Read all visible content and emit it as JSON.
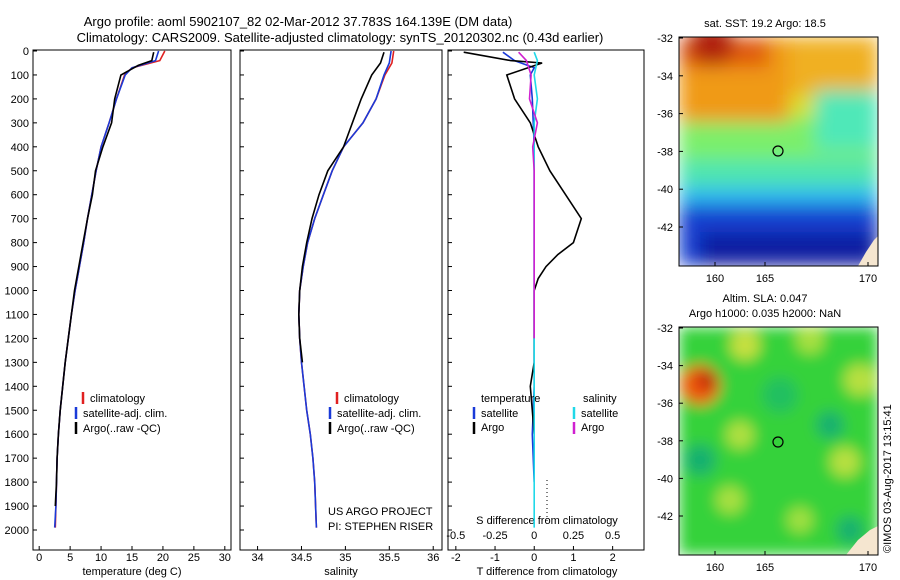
{
  "header": {
    "title1": "Argo profile: aoml 5902107_82 02-Mar-2012 37.783S 164.139E (DM data)",
    "title2": "Climatology: CARS2009. Satellite-adjusted climatology: synTS_20120302.nc (0.43d earlier)"
  },
  "colors": {
    "climatology": "#e02020",
    "satellite": "#1a3ad8",
    "argo": "#000000",
    "sat_salinity": "#20d8e8",
    "argo_salinity": "#d020d0"
  },
  "depth_axis": {
    "ticks": [
      "0",
      "100",
      "200",
      "300",
      "400",
      "500",
      "600",
      "700",
      "800",
      "900",
      "1000",
      "1100",
      "1200",
      "1300",
      "1400",
      "1500",
      "1600",
      "1700",
      "1800",
      "1900",
      "2000"
    ]
  },
  "temp_panel": {
    "xlabel": "temperature (deg C)",
    "xticks": [
      "0",
      "5",
      "10",
      "15",
      "20",
      "25",
      "30"
    ],
    "legend": [
      "climatology",
      "satellite-adj. clim.",
      "Argo(..raw -QC)"
    ]
  },
  "sal_panel": {
    "xlabel": "salinity",
    "xticks": [
      "34",
      "34.5",
      "35",
      "35.5",
      "36"
    ],
    "legend": [
      "climatology",
      "satellite-adj. clim.",
      "Argo(..raw -QC)"
    ],
    "note1": "US ARGO PROJECT",
    "note2": "PI: STEPHEN RISER"
  },
  "diff_panel": {
    "top_label": "S difference from climatology",
    "top_ticks": [
      "-0.5",
      "-0.25",
      "0",
      "0.25",
      "0.5"
    ],
    "xlabel": "T difference from climatology",
    "xticks": [
      "-2",
      "-1",
      "0",
      "1",
      "2"
    ],
    "legend_head_t": "temperature",
    "legend_head_s": "salinity",
    "legend_sat": "satellite",
    "legend_argo": "Argo"
  },
  "map_sst": {
    "title": "sat. SST: 19.2  Argo: 18.5",
    "yticks": [
      "-32",
      "-34",
      "-36",
      "-38",
      "-40",
      "-42"
    ],
    "xticks": [
      "160",
      "165",
      "170"
    ]
  },
  "map_sla": {
    "title1": "Altim. SLA: 0.047",
    "title2": "Argo h1000: 0.035  h2000: NaN",
    "yticks": [
      "-32",
      "-34",
      "-36",
      "-38",
      "-40",
      "-42"
    ],
    "xticks": [
      "160",
      "165",
      "170"
    ]
  },
  "footer": {
    "credit": "©IMOS 03-Aug-2017 13:15:41"
  },
  "chart_data": [
    {
      "type": "line",
      "xlabel": "temperature (deg C)",
      "ylabel": "",
      "xlim": [
        -1,
        31
      ],
      "ylim": [
        2000,
        0
      ],
      "series": [
        {
          "name": "climatology",
          "x": [
            20.3,
            19.5,
            15.0,
            13.8,
            12.5,
            11.3,
            10.0,
            9.2,
            8.5,
            7.8,
            7.2,
            6.5,
            5.8,
            5.2,
            4.7,
            4.2,
            3.8,
            3.4,
            3.1,
            2.9,
            2.8,
            2.7,
            2.6
          ],
          "y": [
            0,
            40,
            70,
            100,
            200,
            300,
            400,
            500,
            600,
            700,
            800,
            900,
            1000,
            1100,
            1200,
            1300,
            1400,
            1500,
            1600,
            1700,
            1800,
            1900,
            1990
          ]
        },
        {
          "name": "satellite-adj. clim.",
          "x": [
            19.3,
            18.8,
            15.0,
            13.9,
            12.5,
            11.3,
            10.0,
            9.2,
            8.5,
            7.8,
            7.2,
            6.5,
            5.8,
            5.2,
            4.7,
            4.2,
            3.8,
            3.4,
            3.1,
            2.9,
            2.8,
            2.7,
            2.5
          ],
          "y": [
            0,
            40,
            70,
            100,
            200,
            300,
            400,
            500,
            600,
            700,
            800,
            900,
            1000,
            1100,
            1200,
            1300,
            1400,
            1500,
            1600,
            1700,
            1800,
            1900,
            1990
          ]
        },
        {
          "name": "Argo(..raw -QC)",
          "x": [
            18.5,
            18.2,
            16.0,
            13.2,
            12.2,
            11.7,
            10.3,
            9.1,
            8.6,
            7.8,
            7.1,
            6.4,
            5.7,
            5.2,
            4.7,
            4.2,
            3.8,
            3.4,
            3.1,
            2.9,
            2.8,
            2.6
          ],
          "y": [
            5,
            40,
            60,
            100,
            200,
            300,
            400,
            500,
            600,
            700,
            800,
            900,
            1000,
            1100,
            1200,
            1300,
            1400,
            1500,
            1600,
            1700,
            1800,
            1900
          ]
        }
      ]
    },
    {
      "type": "line",
      "xlabel": "salinity",
      "ylabel": "",
      "xlim": [
        33.8,
        36.1
      ],
      "ylim": [
        2000,
        0
      ],
      "series": [
        {
          "name": "climatology",
          "x": [
            35.55,
            35.53,
            35.45,
            35.35,
            35.2,
            34.98,
            34.85,
            34.75,
            34.65,
            34.57,
            34.52,
            34.48,
            34.47,
            34.48,
            34.5,
            34.53,
            34.56,
            34.6,
            34.63,
            34.65,
            34.67
          ],
          "y": [
            0,
            50,
            100,
            200,
            300,
            400,
            500,
            600,
            700,
            800,
            900,
            1000,
            1100,
            1200,
            1300,
            1400,
            1500,
            1600,
            1700,
            1800,
            1990
          ]
        },
        {
          "name": "satellite-adj. clim.",
          "x": [
            35.52,
            35.5,
            35.44,
            35.35,
            35.2,
            34.98,
            34.85,
            34.75,
            34.65,
            34.57,
            34.52,
            34.48,
            34.47,
            34.48,
            34.5,
            34.53,
            34.56,
            34.6,
            34.63,
            34.65,
            34.67
          ],
          "y": [
            0,
            50,
            100,
            200,
            300,
            400,
            500,
            600,
            700,
            800,
            900,
            1000,
            1100,
            1200,
            1300,
            1400,
            1500,
            1600,
            1700,
            1800,
            1990
          ]
        },
        {
          "name": "Argo(..raw -QC)",
          "x": [
            35.44,
            35.4,
            35.3,
            35.18,
            35.08,
            34.98,
            34.8,
            34.7,
            34.62,
            34.56,
            34.51,
            34.48,
            34.47,
            34.48,
            34.51
          ],
          "y": [
            5,
            50,
            100,
            200,
            300,
            400,
            500,
            600,
            700,
            800,
            900,
            1000,
            1100,
            1200,
            1300
          ]
        }
      ]
    },
    {
      "type": "line",
      "xlabel": "T difference from climatology",
      "x2label": "S difference from climatology",
      "xlim": [
        -2.2,
        2.8
      ],
      "x2lim": [
        -0.55,
        0.7
      ],
      "ylim": [
        2000,
        0
      ],
      "series": [
        {
          "name": "satellite",
          "axis": "T",
          "x": [
            -0.8,
            -0.5,
            0.0,
            -0.1,
            -0.05,
            0.0,
            0.0,
            0.0,
            0.0,
            0.0,
            0.0,
            -0.05,
            0.0
          ],
          "y": [
            5,
            40,
            70,
            100,
            200,
            400,
            600,
            800,
            1000,
            1200,
            1400,
            1600,
            1800
          ]
        },
        {
          "name": "Argo",
          "axis": "T",
          "x": [
            -1.8,
            -0.6,
            0.2,
            -0.7,
            -0.5,
            -0.1,
            0.1,
            0.4,
            0.8,
            1.2,
            1.0,
            0.6,
            0.3,
            0.1,
            0.0,
            0.0,
            0.0,
            0.0,
            -0.1,
            -0.05,
            0.0
          ],
          "y": [
            5,
            40,
            50,
            100,
            200,
            300,
            400,
            500,
            600,
            700,
            800,
            850,
            900,
            950,
            1000,
            1100,
            1200,
            1300,
            1400,
            1500,
            1600
          ]
        },
        {
          "name": "satellite",
          "axis": "S",
          "x": [
            0.0,
            0.02,
            0.0,
            0.02,
            0.0,
            0.0,
            0.0,
            0.0,
            0.0,
            0.0,
            0.0,
            0.0,
            0.0
          ],
          "y": [
            5,
            40,
            100,
            200,
            300,
            500,
            700,
            900,
            1100,
            1300,
            1500,
            1700,
            1990
          ]
        },
        {
          "name": "Argo",
          "axis": "S",
          "x": [
            -0.1,
            -0.05,
            -0.02,
            -0.03,
            0.02,
            -0.01,
            0.0,
            0.0,
            0.0,
            0.0,
            0.0
          ],
          "y": [
            5,
            40,
            100,
            200,
            300,
            400,
            500,
            600,
            700,
            900,
            1200
          ]
        }
      ]
    }
  ]
}
